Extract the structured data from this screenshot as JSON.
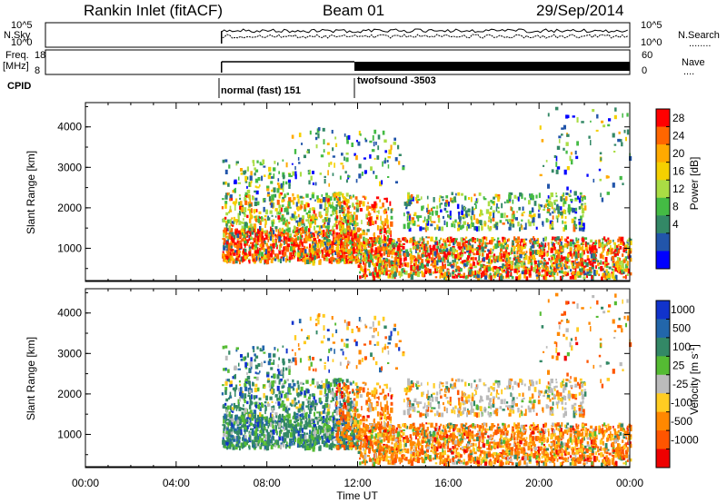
{
  "header": {
    "station": "Rankin Inlet (fitACF)",
    "beam": "Beam 01",
    "date": "29/Sep/2014"
  },
  "summary_panels": {
    "nsky_label": "N.Sky",
    "nsky_ticks": [
      "10^5",
      "10^0"
    ],
    "nsearch_label": "N.Search",
    "nsearch_ticks": [
      "10^5",
      "10^0"
    ],
    "nsearch_dots": "........",
    "freq_label": "Freq.",
    "freq_unit": "[MHz]",
    "freq_ticks": [
      "18",
      "8"
    ],
    "nave_label": "Nave",
    "nave_ticks": [
      "60",
      "0"
    ],
    "nave_dots": "....",
    "cpid_label": "CPID",
    "cpid_modes": [
      "normal (fast) 151",
      "twofsound -3503"
    ]
  },
  "chart_data": [
    {
      "type": "heatmap",
      "name": "power-panel",
      "ylabel": "Slant Range [km]",
      "xlabel": "",
      "x_ticks": [
        "00:00",
        "04:00",
        "08:00",
        "12:00",
        "16:00",
        "20:00",
        "00:00"
      ],
      "y_ticks": [
        "1000",
        "2000",
        "3000",
        "4000"
      ],
      "xlim_hours": [
        0,
        24
      ],
      "ylim_km": [
        180,
        4600
      ],
      "colorbar": {
        "label": "Power [dB]",
        "ticks": [
          "28",
          "24",
          "20",
          "16",
          "12",
          "8",
          "4"
        ],
        "colors": [
          "#ff0000",
          "#ff6600",
          "#ffaa00",
          "#f5d000",
          "#aadd44",
          "#44bb44",
          "#338866",
          "#2255aa",
          "#0000ff"
        ]
      },
      "data_window_hours": [
        6.0,
        24.0
      ]
    },
    {
      "type": "heatmap",
      "name": "velocity-panel",
      "ylabel": "Slant Range [km]",
      "xlabel": "Time UT",
      "x_ticks": [
        "00:00",
        "04:00",
        "08:00",
        "12:00",
        "16:00",
        "20:00",
        "00:00"
      ],
      "y_ticks": [
        "1000",
        "2000",
        "3000",
        "4000"
      ],
      "xlim_hours": [
        0,
        24
      ],
      "ylim_km": [
        180,
        4600
      ],
      "colorbar": {
        "label": "Velocity [m s",
        "label_sup": "-1",
        "label_end": "]",
        "ticks": [
          "1000",
          "500",
          "100",
          "25",
          "-25",
          "-100",
          "-500",
          "-1000"
        ],
        "colors": [
          "#1133cc",
          "#2266aa",
          "#338866",
          "#55bb33",
          "#bbbbbb",
          "#ffcc22",
          "#ff8800",
          "#ff5500",
          "#ee0000"
        ]
      },
      "data_window_hours": [
        6.0,
        24.0
      ]
    }
  ],
  "colors": {
    "axes": "#000000",
    "background": "#ffffff"
  }
}
